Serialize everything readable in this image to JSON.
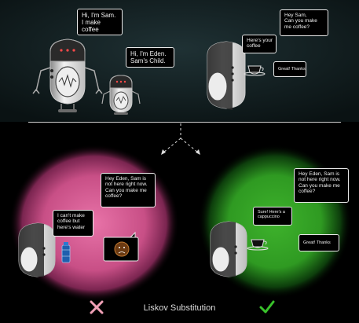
{
  "top": {
    "sam_intro": [
      "Hi, I'm Sam.",
      "I make",
      "coffee"
    ],
    "eden_intro": [
      "Hi, I'm Eden.",
      "Sam's Child."
    ],
    "request": [
      "Hey Sam,",
      "Can you make",
      "me coffee?"
    ],
    "reply": [
      "Here's your",
      "coffee"
    ],
    "thanks": "Great! Thanks"
  },
  "bottom_left": {
    "request": [
      "Hey Eden, Sam is",
      "not here right now.",
      "Can you make me",
      "coffee?"
    ],
    "reply": [
      "I can't make",
      "coffee but",
      "here's water"
    ]
  },
  "bottom_right": {
    "request": [
      "Hey Eden, Sam is",
      "not here right now.",
      "Can you make me",
      "coffee?"
    ],
    "reply": [
      "Sure! Here's a",
      "cappuccino"
    ],
    "thanks": "Great! Thanks"
  },
  "caption": "Liskov Substitution",
  "colors": {
    "bad_glow": "#c84f86",
    "good_glow": "#2f9a22",
    "cross": "#f0a0b6",
    "check": "#39c22b"
  },
  "icons": {
    "cross": "cross-icon",
    "check": "check-icon"
  }
}
